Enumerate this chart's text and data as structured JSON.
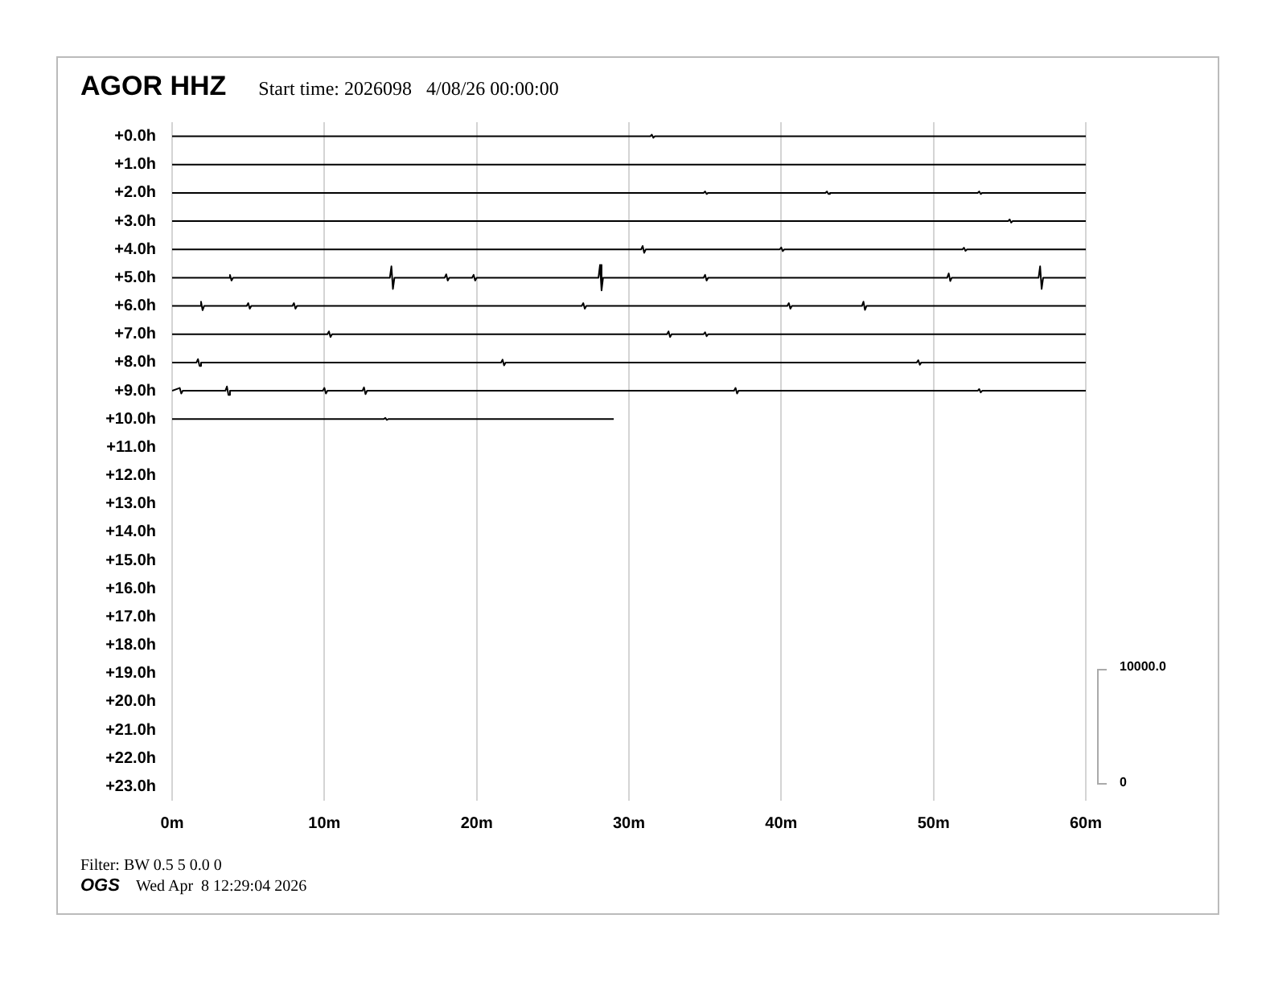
{
  "chart_data": {
    "type": "line",
    "title": "AGOR HHZ",
    "subtitle": "Start time: 2026098   4/08/26 00:00:00",
    "annotations": [
      "Filter: BW 0.5 5 0.0 0",
      "OGS",
      "Wed Apr  8 12:29:04 2026",
      "10000.0",
      "0"
    ],
    "xlim": [
      0,
      60
    ],
    "xticks": [
      {
        "value": 0,
        "label": "0m"
      },
      {
        "value": 10,
        "label": "10m"
      },
      {
        "value": 20,
        "label": "20m"
      },
      {
        "value": 30,
        "label": "30m"
      },
      {
        "value": 40,
        "label": "40m"
      },
      {
        "value": 50,
        "label": "50m"
      },
      {
        "value": 60,
        "label": "60m"
      }
    ],
    "ylim": [
      23.5,
      -0.5
    ],
    "yticks": [
      {
        "value": 0,
        "label": "+0.0h"
      },
      {
        "value": 1,
        "label": "+1.0h"
      },
      {
        "value": 2,
        "label": "+2.0h"
      },
      {
        "value": 3,
        "label": "+3.0h"
      },
      {
        "value": 4,
        "label": "+4.0h"
      },
      {
        "value": 5,
        "label": "+5.0h"
      },
      {
        "value": 6,
        "label": "+6.0h"
      },
      {
        "value": 7,
        "label": "+7.0h"
      },
      {
        "value": 8,
        "label": "+8.0h"
      },
      {
        "value": 9,
        "label": "+9.0h"
      },
      {
        "value": 10,
        "label": "+10.0h"
      },
      {
        "value": 11,
        "label": "+11.0h"
      },
      {
        "value": 12,
        "label": "+12.0h"
      },
      {
        "value": 13,
        "label": "+13.0h"
      },
      {
        "value": 14,
        "label": "+14.0h"
      },
      {
        "value": 15,
        "label": "+15.0h"
      },
      {
        "value": 16,
        "label": "+16.0h"
      },
      {
        "value": 17,
        "label": "+17.0h"
      },
      {
        "value": 18,
        "label": "+18.0h"
      },
      {
        "value": 19,
        "label": "+19.0h"
      },
      {
        "value": 20,
        "label": "+20.0h"
      },
      {
        "value": 21,
        "label": "+21.0h"
      },
      {
        "value": 22,
        "label": "+22.0h"
      },
      {
        "value": 23,
        "label": "+23.0h"
      }
    ],
    "grid": "x",
    "marker": "none",
    "line_style": "solid",
    "legend": false,
    "series": [
      {
        "color": "#000000",
        "x": [
          0,
          31.4,
          31.5,
          31.6,
          31.7,
          60
        ],
        "values": [
          0,
          0,
          -0.06,
          0.05,
          0,
          0
        ]
      },
      {
        "color": "#000000",
        "x": [
          0,
          30,
          60
        ],
        "values": [
          1,
          1,
          1
        ]
      },
      {
        "color": "#000000",
        "x": [
          0,
          34.9,
          35,
          35.1,
          35.2,
          42.9,
          43,
          43.1,
          43.2,
          52.9,
          53,
          53.1,
          53.2,
          60
        ],
        "values": [
          2,
          2,
          1.95,
          2.04,
          2,
          2,
          1.95,
          2.04,
          2,
          2,
          1.95,
          2.04,
          2,
          2
        ]
      },
      {
        "color": "#000000",
        "x": [
          0,
          54.9,
          55,
          55.1,
          55.2,
          60
        ],
        "values": [
          3,
          3,
          2.94,
          3.05,
          3,
          3
        ]
      },
      {
        "color": "#000000",
        "x": [
          0,
          30.8,
          30.9,
          31,
          31.1,
          39.9,
          40,
          40.1,
          40.2,
          51.9,
          52,
          52.1,
          52.2,
          60
        ],
        "values": [
          4,
          4,
          3.88,
          4.12,
          4,
          4,
          3.93,
          4.06,
          4,
          4,
          3.94,
          4.05,
          4,
          4
        ]
      },
      {
        "color": "#000000",
        "x": [
          0,
          3.7,
          3.8,
          3.9,
          4,
          14.3,
          14.4,
          14.5,
          14.6,
          17.9,
          18,
          18.1,
          18.2,
          19.7,
          19.8,
          19.9,
          20,
          28,
          28.1,
          28.2,
          28.3,
          34.9,
          35,
          35.1,
          35.2,
          50.9,
          51,
          51.1,
          51.2,
          56.9,
          57,
          57.1,
          57.2,
          60
        ],
        "values": [
          5,
          5,
          4.9,
          5.1,
          5,
          5,
          4.6,
          5.4,
          5,
          5,
          4.88,
          5.1,
          5,
          5,
          4.9,
          5.1,
          5,
          5,
          4.55,
          5.45,
          5,
          5,
          4.9,
          5.1,
          5,
          5,
          4.85,
          5.12,
          5,
          5,
          4.6,
          5.4,
          5,
          5
        ]
      },
      {
        "color": "#000000",
        "x": [
          0,
          1.8,
          1.9,
          2,
          2.1,
          4.9,
          5,
          5.1,
          5.2,
          7.9,
          8,
          8.1,
          8.2,
          26.9,
          27,
          27.1,
          27.2,
          40.4,
          40.5,
          40.6,
          40.7,
          45.3,
          45.4,
          45.5,
          45.6,
          60
        ],
        "values": [
          6,
          6,
          5.85,
          6.15,
          6,
          6,
          5.9,
          6.1,
          6,
          6,
          5.9,
          6.1,
          6,
          6,
          5.9,
          6.1,
          6,
          6,
          5.9,
          6.1,
          6,
          6,
          5.85,
          6.14,
          6,
          6
        ]
      },
      {
        "color": "#000000",
        "x": [
          0,
          10.2,
          10.3,
          10.4,
          10.5,
          32.5,
          32.6,
          32.7,
          32.8,
          34.9,
          35,
          35.1,
          35.2,
          60
        ],
        "values": [
          7,
          7,
          6.9,
          7.1,
          7,
          7,
          6.9,
          7.1,
          7,
          7,
          6.93,
          7.07,
          7,
          7
        ]
      },
      {
        "color": "#000000",
        "x": [
          0,
          1.6,
          1.7,
          1.8,
          1.9,
          21.6,
          21.7,
          21.8,
          21.9,
          48.9,
          49,
          49.1,
          49.2,
          60
        ],
        "values": [
          8,
          8,
          7.88,
          8.12,
          8,
          8,
          7.9,
          8.1,
          8,
          8,
          7.92,
          8.08,
          8,
          8
        ]
      },
      {
        "color": "#000000",
        "x": [
          0,
          0.5,
          0.6,
          0.7,
          3.5,
          3.6,
          3.7,
          3.8,
          9.9,
          10,
          10.1,
          10.2,
          12.5,
          12.6,
          12.7,
          12.8,
          36.9,
          37,
          37.1,
          37.2,
          52.9,
          53,
          53.1,
          53.2,
          60
        ],
        "values": [
          9,
          8.9,
          9.1,
          9,
          9,
          8.85,
          9.15,
          9,
          9,
          8.9,
          9.1,
          9,
          9,
          8.88,
          9.12,
          9,
          9,
          8.9,
          9.1,
          9,
          9,
          8.94,
          9.06,
          9,
          9
        ]
      },
      {
        "color": "#000000",
        "x": [
          0,
          13.9,
          14,
          14.1,
          14.2,
          29
        ],
        "values": [
          10,
          10,
          9.96,
          10.03,
          10,
          10
        ]
      }
    ]
  }
}
